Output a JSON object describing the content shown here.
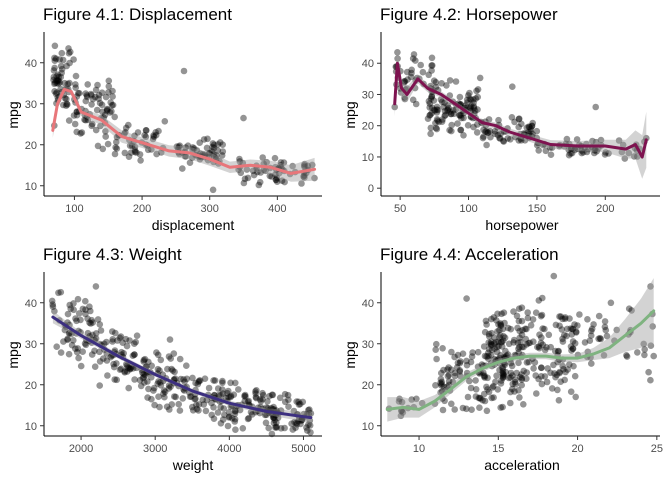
{
  "chart_data": [
    {
      "type": "scatter",
      "title": "Figure 4.1: Displacement",
      "xlabel": "displacement",
      "ylabel": "mpg",
      "xlim": [
        55,
        466
      ],
      "ylim": [
        7.5,
        47.5
      ],
      "xticks": [
        100,
        200,
        300,
        400
      ],
      "yticks": [
        10,
        20,
        30,
        40
      ],
      "grid": false,
      "smooth_color": "#e8767a",
      "seed": 11,
      "clusters": [
        {
          "x": [
            68,
            100
          ],
          "y": [
            24,
            46
          ],
          "n": 60
        },
        {
          "x": [
            100,
            160
          ],
          "y": [
            18,
            38
          ],
          "n": 70
        },
        {
          "x": [
            160,
            235
          ],
          "y": [
            15,
            26
          ],
          "n": 45
        },
        {
          "x": [
            250,
            320
          ],
          "y": [
            13,
            22
          ],
          "n": 55
        },
        {
          "x": [
            340,
            455
          ],
          "y": [
            9,
            18
          ],
          "n": 60
        }
      ],
      "outliers": [
        [
          262,
          38
        ],
        [
          350,
          26.5
        ],
        [
          305,
          9
        ],
        [
          440,
          12
        ]
      ],
      "smooth": [
        [
          68,
          23.5
        ],
        [
          75,
          30
        ],
        [
          85,
          33.5
        ],
        [
          95,
          33
        ],
        [
          110,
          28
        ],
        [
          140,
          26
        ],
        [
          170,
          22
        ],
        [
          200,
          20.5
        ],
        [
          240,
          18.5
        ],
        [
          270,
          18
        ],
        [
          300,
          16.5
        ],
        [
          330,
          14.5
        ],
        [
          360,
          15
        ],
        [
          390,
          14.5
        ],
        [
          420,
          13
        ],
        [
          455,
          14
        ]
      ],
      "band": [
        1.8,
        1.2,
        1.0,
        0.9,
        1.0,
        1.2,
        1.5,
        1.3,
        1.4,
        1.5,
        1.6,
        1.4,
        1.4,
        1.6,
        2.0,
        2.8
      ]
    },
    {
      "type": "scatter",
      "title": "Figure 4.2: Horsepower",
      "xlabel": "horsepower",
      "ylabel": "mpg",
      "xlim": [
        36,
        240
      ],
      "ylim": [
        -2.5,
        50
      ],
      "xticks": [
        50,
        100,
        150,
        200
      ],
      "yticks": [
        0,
        10,
        20,
        30,
        40
      ],
      "grid": false,
      "smooth_color": "#7e1350",
      "seed": 23,
      "clusters": [
        {
          "x": [
            46,
            75
          ],
          "y": [
            24,
            46
          ],
          "n": 45
        },
        {
          "x": [
            70,
            110
          ],
          "y": [
            16,
            36
          ],
          "n": 110
        },
        {
          "x": [
            110,
            150
          ],
          "y": [
            12,
            24
          ],
          "n": 60
        },
        {
          "x": [
            150,
            200
          ],
          "y": [
            10,
            16
          ],
          "n": 45
        },
        {
          "x": [
            200,
            230
          ],
          "y": [
            9,
            16
          ],
          "n": 14
        }
      ],
      "outliers": [
        [
          48,
          43.5
        ],
        [
          132,
          32.5
        ],
        [
          193,
          26
        ],
        [
          46,
          26
        ],
        [
          230,
          16
        ]
      ],
      "smooth": [
        [
          46,
          27
        ],
        [
          48,
          40
        ],
        [
          51,
          32
        ],
        [
          55,
          30
        ],
        [
          63,
          35
        ],
        [
          70,
          32
        ],
        [
          80,
          30
        ],
        [
          90,
          27
        ],
        [
          100,
          24
        ],
        [
          110,
          21
        ],
        [
          120,
          20
        ],
        [
          130,
          18
        ],
        [
          145,
          16
        ],
        [
          160,
          14
        ],
        [
          180,
          13.5
        ],
        [
          200,
          13.5
        ],
        [
          215,
          12.5
        ],
        [
          222,
          14
        ],
        [
          227,
          10
        ],
        [
          230,
          15.5
        ]
      ],
      "band": [
        4,
        4,
        3,
        2.5,
        1.5,
        1.2,
        1.0,
        1.0,
        0.9,
        1.0,
        1.0,
        1.1,
        1.2,
        1.4,
        1.6,
        2.0,
        3.0,
        4.5,
        7,
        9
      ]
    },
    {
      "type": "scatter",
      "title": "Figure 4.3: Weight",
      "xlabel": "weight",
      "ylabel": "mpg",
      "xlim": [
        1500,
        5250
      ],
      "ylim": [
        7.5,
        47.5
      ],
      "xticks": [
        2000,
        3000,
        4000,
        5000
      ],
      "yticks": [
        10,
        20,
        30,
        40
      ],
      "grid": false,
      "smooth_color": "#3c2f80",
      "seed": 37,
      "band_line": [
        [
          1600,
          38,
          35
        ],
        [
          5100,
          14,
          10.5
        ]
      ],
      "n": 400,
      "outliers": [
        [
          2200,
          44
        ],
        [
          3200,
          31
        ],
        [
          5100,
          13
        ]
      ],
      "smooth": [
        [
          1620,
          36.5
        ],
        [
          2000,
          32
        ],
        [
          2500,
          27
        ],
        [
          3000,
          22.5
        ],
        [
          3500,
          18.5
        ],
        [
          4000,
          15.5
        ],
        [
          4500,
          13.5
        ],
        [
          5000,
          12.2
        ],
        [
          5100,
          12
        ]
      ],
      "band": [
        1.5,
        0.8,
        0.6,
        0.5,
        0.5,
        0.6,
        0.8,
        1.2,
        1.6
      ]
    },
    {
      "type": "scatter",
      "title": "Figure 4.4: Acceleration",
      "xlabel": "acceleration",
      "ylabel": "mpg",
      "xlim": [
        7.6,
        25.2
      ],
      "ylim": [
        7.5,
        47.5
      ],
      "xticks": [
        10,
        15,
        20,
        25
      ],
      "yticks": [
        10,
        20,
        30,
        40
      ],
      "grid": false,
      "smooth_color": "#7fb380",
      "seed": 51,
      "clusters": [
        {
          "x": [
            8,
            11
          ],
          "y": [
            10,
            18
          ],
          "n": 14
        },
        {
          "x": [
            11,
            14
          ],
          "y": [
            12,
            32
          ],
          "n": 70
        },
        {
          "x": [
            14,
            17
          ],
          "y": [
            12,
            40
          ],
          "n": 170
        },
        {
          "x": [
            17,
            20
          ],
          "y": [
            15,
            42
          ],
          "n": 90
        },
        {
          "x": [
            20,
            24.8
          ],
          "y": [
            18,
            44
          ],
          "n": 40
        }
      ],
      "outliers": [
        [
          18.5,
          46.5
        ],
        [
          24.6,
          44
        ],
        [
          24.8,
          27
        ],
        [
          22.1,
          40
        ],
        [
          13,
          41
        ]
      ],
      "smooth": [
        [
          8,
          14
        ],
        [
          9,
          14.5
        ],
        [
          10,
          14
        ],
        [
          11,
          16
        ],
        [
          12,
          19
        ],
        [
          13,
          22
        ],
        [
          14,
          24
        ],
        [
          15,
          25.5
        ],
        [
          16,
          26.5
        ],
        [
          17,
          27
        ],
        [
          18,
          27
        ],
        [
          19,
          26.5
        ],
        [
          20,
          26.5
        ],
        [
          21,
          27.5
        ],
        [
          22,
          29
        ],
        [
          23,
          32
        ],
        [
          24,
          35
        ],
        [
          24.8,
          38
        ]
      ],
      "band": [
        3,
        2.5,
        2,
        1.5,
        1.2,
        1,
        0.8,
        0.8,
        0.8,
        0.8,
        0.8,
        0.9,
        1.0,
        1.5,
        2.5,
        4,
        6,
        8
      ]
    }
  ]
}
